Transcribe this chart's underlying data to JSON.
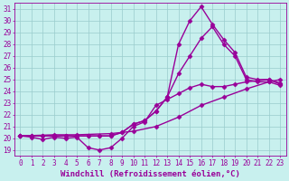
{
  "xlabel": "Windchill (Refroidissement éolien,°C)",
  "ylabel": "",
  "bg_color": "#c8f0ee",
  "grid_color": "#99cccc",
  "line_color": "#990099",
  "xlim": [
    -0.5,
    23.5
  ],
  "ylim": [
    18.5,
    31.5
  ],
  "xticks": [
    0,
    1,
    2,
    3,
    4,
    5,
    6,
    7,
    8,
    9,
    10,
    11,
    12,
    13,
    14,
    15,
    16,
    17,
    18,
    19,
    20,
    21,
    22,
    23
  ],
  "yticks": [
    19,
    20,
    21,
    22,
    23,
    24,
    25,
    26,
    27,
    28,
    29,
    30,
    31
  ],
  "line1_x": [
    0,
    1,
    2,
    3,
    4,
    5,
    6,
    7,
    8,
    9,
    10,
    11,
    12,
    13,
    14,
    15,
    16,
    17,
    18,
    19,
    20,
    21,
    22,
    23
  ],
  "line1_y": [
    20.2,
    20.1,
    19.9,
    20.1,
    20.0,
    20.1,
    19.2,
    19.0,
    19.2,
    20.0,
    21.0,
    21.4,
    22.8,
    23.3,
    23.8,
    24.3,
    24.6,
    24.4,
    24.4,
    24.6,
    24.8,
    24.9,
    25.0,
    24.6
  ],
  "line2_x": [
    0,
    1,
    2,
    3,
    4,
    5,
    6,
    7,
    8,
    9,
    10,
    11,
    12,
    13,
    14,
    15,
    16,
    17,
    18,
    19,
    20,
    21,
    22,
    23
  ],
  "line2_y": [
    20.2,
    20.2,
    20.2,
    20.2,
    20.2,
    20.2,
    20.2,
    20.2,
    20.2,
    20.5,
    21.2,
    21.5,
    22.3,
    23.5,
    25.5,
    27.0,
    28.5,
    29.5,
    28.0,
    27.0,
    25.0,
    24.8,
    24.8,
    24.5
  ],
  "line3_x": [
    0,
    1,
    2,
    3,
    4,
    5,
    6,
    7,
    8,
    9,
    10,
    11,
    12,
    13,
    14,
    15,
    16,
    17,
    18,
    19,
    20,
    21,
    22,
    23
  ],
  "line3_y": [
    20.2,
    20.2,
    20.2,
    20.2,
    20.2,
    20.2,
    20.2,
    20.2,
    20.2,
    20.5,
    21.2,
    21.5,
    22.3,
    23.5,
    28.0,
    30.0,
    31.2,
    29.7,
    28.4,
    27.3,
    25.2,
    25.0,
    25.0,
    24.7
  ],
  "line4_x": [
    0,
    3,
    5,
    8,
    10,
    12,
    14,
    16,
    18,
    20,
    22,
    23
  ],
  "line4_y": [
    20.2,
    20.3,
    20.3,
    20.4,
    20.6,
    21.0,
    21.8,
    22.8,
    23.5,
    24.2,
    24.8,
    25.0
  ],
  "marker": "D",
  "markersize": 2.5,
  "linewidth": 1.0,
  "label_fontsize": 6.5,
  "tick_fontsize": 5.5
}
